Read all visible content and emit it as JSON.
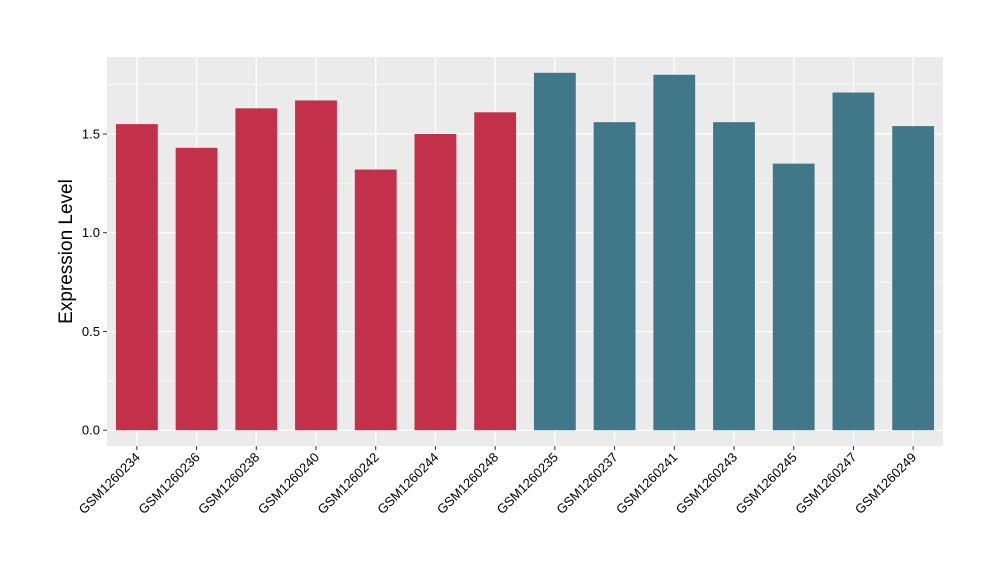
{
  "chart_data": {
    "type": "bar",
    "title": "",
    "xlabel": "",
    "ylabel": "Expression Level",
    "ylim": [
      -0.08,
      1.89
    ],
    "yticks": [
      0.0,
      0.5,
      1.0,
      1.5
    ],
    "ytick_labels": [
      "0.0",
      "0.5",
      "1.0",
      "1.5"
    ],
    "grid": true,
    "legend": "none",
    "categories": [
      "GSM1260234",
      "GSM1260236",
      "GSM1260238",
      "GSM1260240",
      "GSM1260242",
      "GSM1260244",
      "GSM1260248",
      "GSM1260235",
      "GSM1260237",
      "GSM1260241",
      "GSM1260243",
      "GSM1260245",
      "GSM1260247",
      "GSM1260249"
    ],
    "values": [
      1.55,
      1.43,
      1.63,
      1.67,
      1.32,
      1.5,
      1.61,
      1.81,
      1.56,
      1.8,
      1.56,
      1.35,
      1.71,
      1.54
    ],
    "group": [
      0,
      0,
      0,
      0,
      0,
      0,
      0,
      1,
      1,
      1,
      1,
      1,
      1,
      1
    ],
    "colors": [
      "#C3304A",
      "#417889"
    ],
    "panel_background": "#EBEBEB",
    "grid_color": "#FFFFFF"
  }
}
